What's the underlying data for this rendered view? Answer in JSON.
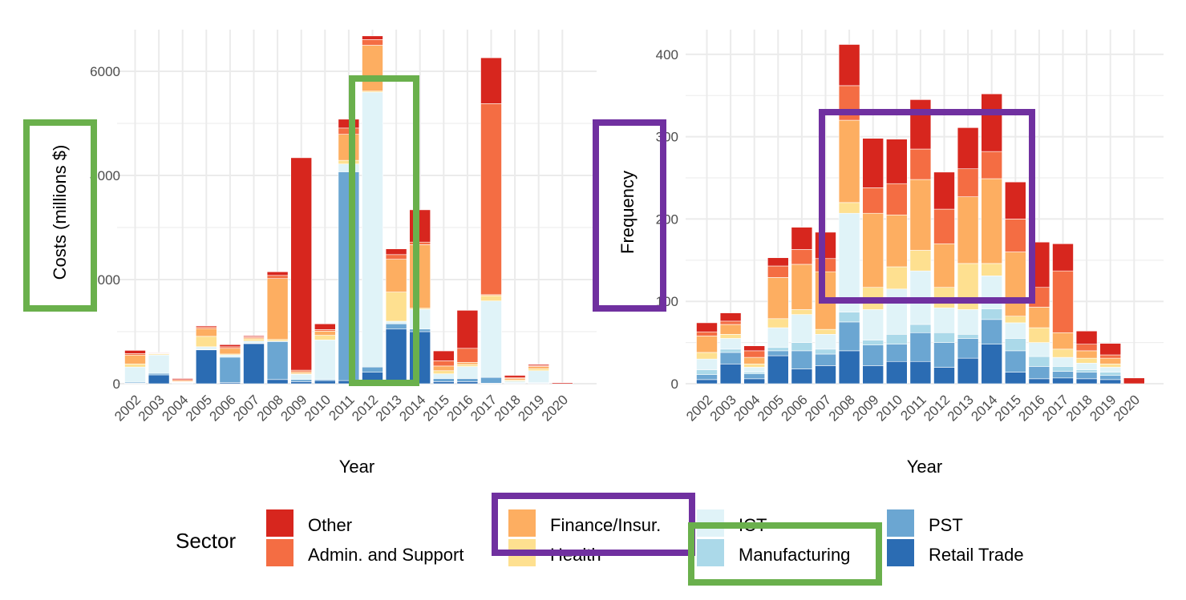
{
  "chart_data": [
    {
      "type": "bar",
      "stacked": true,
      "xlabel": "Year",
      "ylabel": "Costs (millions $)",
      "ylim": [
        0,
        6800
      ],
      "yticks": [
        0,
        2000,
        4000,
        6000
      ],
      "grid": true,
      "categories": [
        "2002",
        "2003",
        "2004",
        "2005",
        "2006",
        "2007",
        "2008",
        "2009",
        "2010",
        "2011",
        "2012",
        "2013",
        "2014",
        "2015",
        "2016",
        "2017",
        "2018",
        "2019",
        "2020"
      ],
      "series": [
        {
          "name": "Retail Trade",
          "values": [
            10,
            170,
            10,
            650,
            20,
            770,
            80,
            40,
            60,
            60,
            220,
            1050,
            1000,
            40,
            40,
            10,
            10,
            10,
            0
          ]
        },
        {
          "name": "PST",
          "values": [
            20,
            30,
            10,
            10,
            490,
            10,
            730,
            40,
            20,
            4010,
            100,
            100,
            50,
            60,
            60,
            110,
            10,
            10,
            0
          ]
        },
        {
          "name": "Manufacturing",
          "values": [
            0,
            0,
            0,
            0,
            0,
            0,
            0,
            0,
            0,
            0,
            0,
            0,
            0,
            0,
            0,
            0,
            0,
            0,
            0
          ]
        },
        {
          "name": "ICT",
          "values": [
            290,
            350,
            10,
            50,
            40,
            40,
            10,
            100,
            760,
            150,
            5280,
            50,
            380,
            90,
            230,
            1470,
            30,
            230,
            0
          ]
        },
        {
          "name": "Health",
          "values": [
            60,
            20,
            10,
            200,
            20,
            40,
            30,
            20,
            90,
            70,
            20,
            560,
            20,
            60,
            40,
            100,
            20,
            40,
            0
          ]
        },
        {
          "name": "Finance/Insur.",
          "values": [
            170,
            10,
            20,
            150,
            110,
            20,
            1170,
            30,
            80,
            500,
            880,
            630,
            1220,
            90,
            40,
            20,
            30,
            40,
            0
          ]
        },
        {
          "name": "Admin. and Support",
          "values": [
            30,
            10,
            20,
            30,
            30,
            20,
            60,
            30,
            30,
            120,
            110,
            90,
            50,
            100,
            270,
            3670,
            20,
            20,
            0
          ]
        },
        {
          "name": "Other",
          "values": [
            60,
            10,
            20,
            20,
            40,
            20,
            70,
            4080,
            110,
            170,
            70,
            110,
            620,
            190,
            730,
            880,
            40,
            20,
            20
          ]
        }
      ],
      "highlight": {
        "x_range": [
          "2011",
          "2012"
        ],
        "color": "#6ab04c"
      }
    },
    {
      "type": "bar",
      "stacked": true,
      "xlabel": "Year",
      "ylabel": "Frequency",
      "ylim": [
        0,
        430
      ],
      "yticks": [
        0,
        100,
        200,
        300,
        400
      ],
      "grid": true,
      "categories": [
        "2002",
        "2003",
        "2004",
        "2005",
        "2006",
        "2007",
        "2008",
        "2009",
        "2010",
        "2011",
        "2012",
        "2013",
        "2014",
        "2015",
        "2016",
        "2017",
        "2018",
        "2019",
        "2020"
      ],
      "series": [
        {
          "name": "Retail Trade",
          "values": [
            5,
            24,
            6,
            34,
            18,
            22,
            40,
            22,
            27,
            27,
            20,
            31,
            48,
            14,
            6,
            7,
            6,
            5,
            0
          ]
        },
        {
          "name": "PST",
          "values": [
            6,
            14,
            6,
            6,
            22,
            14,
            35,
            25,
            21,
            35,
            30,
            24,
            30,
            26,
            15,
            8,
            8,
            5,
            0
          ]
        },
        {
          "name": "Manufacturing",
          "values": [
            6,
            4,
            2,
            4,
            10,
            6,
            12,
            6,
            12,
            10,
            12,
            5,
            13,
            15,
            12,
            6,
            3,
            4,
            0
          ]
        },
        {
          "name": "ICT",
          "values": [
            13,
            13,
            6,
            24,
            34,
            18,
            120,
            37,
            55,
            65,
            30,
            30,
            40,
            19,
            17,
            11,
            8,
            6,
            0
          ]
        },
        {
          "name": "Health",
          "values": [
            8,
            5,
            4,
            11,
            6,
            6,
            13,
            27,
            27,
            25,
            25,
            56,
            15,
            8,
            18,
            10,
            6,
            4,
            0
          ]
        },
        {
          "name": "Finance/Insur.",
          "values": [
            20,
            12,
            8,
            50,
            55,
            70,
            100,
            90,
            63,
            86,
            53,
            81,
            103,
            78,
            25,
            20,
            9,
            7,
            0
          ]
        },
        {
          "name": "Admin. and Support",
          "values": [
            5,
            4,
            8,
            14,
            18,
            16,
            42,
            31,
            38,
            37,
            42,
            34,
            33,
            40,
            24,
            75,
            8,
            4,
            0
          ]
        },
        {
          "name": "Other",
          "values": [
            11,
            10,
            6,
            10,
            27,
            32,
            50,
            60,
            54,
            60,
            45,
            50,
            70,
            45,
            55,
            33,
            16,
            14,
            7
          ]
        }
      ],
      "highlight": {
        "x_range": [
          "2008",
          "2015"
        ],
        "color": "#7030a0"
      }
    }
  ],
  "colors": {
    "Other": "#d7261e",
    "Admin. and Support": "#f46d43",
    "Finance/Insur.": "#fdae61",
    "Health": "#fee090",
    "ICT": "#e0f3f8",
    "Manufacturing": "#abd9e9",
    "PST": "#6ba6d2",
    "Retail Trade": "#2b6cb3",
    "grid": "#ebebeb",
    "highlight_green": "#6ab04c",
    "highlight_purple": "#7030a0"
  },
  "legend": {
    "title": "Sector",
    "items": [
      "Other",
      "Admin. and Support",
      "Finance/Insur.",
      "Health",
      "ICT",
      "Manufacturing",
      "PST",
      "Retail Trade"
    ],
    "highlights": [
      {
        "item": "Finance/Insur.",
        "color": "#7030a0"
      },
      {
        "item": "Manufacturing",
        "color": "#6ab04c"
      }
    ]
  },
  "ylabel_highlights": [
    {
      "panel": 0,
      "color": "#6ab04c"
    },
    {
      "panel": 1,
      "color": "#7030a0"
    }
  ]
}
